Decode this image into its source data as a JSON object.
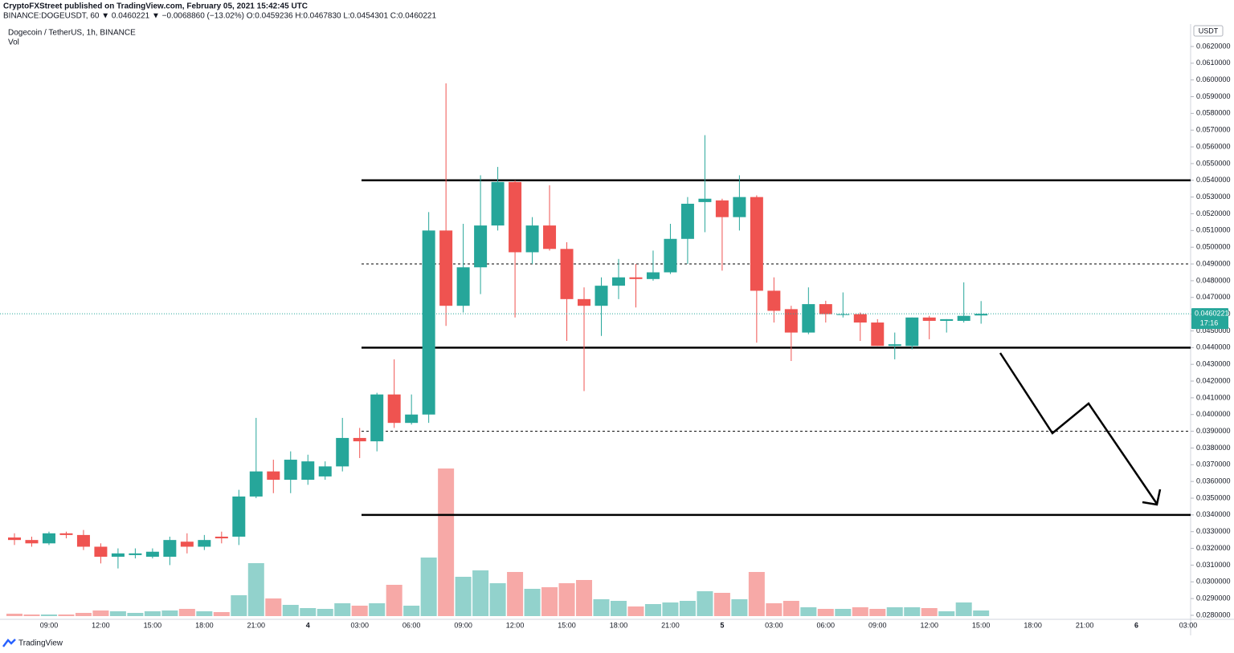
{
  "chart_data": {
    "type": "candlestick",
    "publisher": "CryptoFXStreet published on TradingView.com, February 05, 2021 15:42:45 UTC",
    "header": "BINANCE:DOGEUSDT, 60 ▼ 0.0460221 ▼ −0.0068860 (−13.02%) O:0.0459236 H:0.0467830 L:0.0454301 C:0.0460221",
    "title": "Dogecoin / TetherUS, 1h, BINANCE",
    "volume_label": "Vol",
    "currency": "USDT",
    "countdown": "17:16",
    "brand": "TradingView",
    "up_color": "#26a69a",
    "down_color": "#ef5350",
    "categories": [
      null,
      null,
      "09:00",
      null,
      null,
      "12:00",
      null,
      null,
      "15:00",
      null,
      null,
      "18:00",
      null,
      null,
      "21:00",
      null,
      null,
      "4",
      null,
      null,
      "03:00",
      null,
      null,
      "06:00",
      null,
      null,
      "09:00",
      null,
      null,
      "12:00",
      null,
      null,
      "15:00",
      null,
      null,
      "18:00",
      null,
      null,
      "21:00",
      null,
      null,
      "5",
      null,
      null,
      "03:00",
      null,
      null,
      "06:00",
      null,
      null,
      "09:00",
      null,
      null,
      "12:00",
      null,
      null,
      "15:00",
      null,
      null,
      "18:00",
      null,
      null,
      "21:00",
      null,
      null,
      "6",
      null,
      null,
      "03:00"
    ],
    "open": [
      0.03265,
      0.0325,
      0.0323,
      0.0329,
      0.0328,
      0.0321,
      0.0315,
      0.0316,
      0.0315,
      0.0315,
      0.0324,
      0.0321,
      0.0327,
      0.0327,
      0.0351,
      0.0366,
      0.0361,
      0.0361,
      0.0363,
      0.0369,
      0.0386,
      0.0384,
      0.0412,
      0.0395,
      0.04,
      0.051,
      0.0465,
      0.0488,
      0.0513,
      0.0539,
      0.0497,
      0.0513,
      0.0499,
      0.0469,
      0.0465,
      0.0477,
      0.0482,
      0.0481,
      0.0485,
      0.0505,
      0.0527,
      0.0528,
      0.0518,
      0.053,
      0.0474,
      0.0463,
      0.0449,
      0.0466,
      0.04595,
      0.046,
      0.0455,
      0.0441,
      0.0441,
      0.0458,
      0.0456,
      0.0456,
      0.0459236,
      null,
      null,
      null,
      null,
      null,
      null,
      null,
      null,
      null,
      null,
      null,
      null
    ],
    "high": [
      0.0329,
      0.0327,
      0.033,
      0.033,
      0.0331,
      0.0323,
      0.032,
      0.032,
      0.032,
      0.0327,
      0.0329,
      0.0328,
      0.033,
      0.0355,
      0.0398,
      0.0373,
      0.0378,
      0.0376,
      0.0372,
      0.0398,
      0.0392,
      0.0413,
      0.0433,
      0.0412,
      0.0521,
      0.0598,
      0.0514,
      0.0543,
      0.0548,
      0.054,
      0.0518,
      0.0537,
      0.0503,
      0.0476,
      0.0482,
      0.0493,
      0.049,
      0.0498,
      0.0514,
      0.053,
      0.0567,
      0.0529,
      0.0543,
      0.0531,
      0.0482,
      0.0465,
      0.0476,
      0.0468,
      0.0473,
      0.0461,
      0.0457,
      0.0449,
      0.0458,
      0.0459,
      0.0457,
      0.0479,
      0.046783,
      null,
      null,
      null,
      null,
      null,
      null,
      null,
      null,
      null,
      null,
      null,
      null
    ],
    "low": [
      0.0322,
      0.0321,
      0.0322,
      0.0326,
      0.0319,
      0.0311,
      0.0308,
      0.0314,
      0.0314,
      0.031,
      0.0317,
      0.0319,
      0.0323,
      0.0322,
      0.035,
      0.0353,
      0.0353,
      0.0358,
      0.0361,
      0.0366,
      0.0374,
      0.0378,
      0.0392,
      0.0394,
      0.0395,
      0.0453,
      0.0461,
      0.0472,
      0.051,
      0.0458,
      0.049,
      0.0498,
      0.0444,
      0.0414,
      0.0447,
      0.0469,
      0.0464,
      0.048,
      0.0484,
      0.049,
      0.0509,
      0.0486,
      0.051,
      0.0443,
      0.0455,
      0.0432,
      0.0448,
      0.0455,
      0.0458,
      0.0444,
      0.0441,
      0.0433,
      0.0439,
      0.0445,
      0.0449,
      0.0455,
      0.0454301,
      null,
      null,
      null,
      null,
      null,
      null,
      null,
      null,
      null,
      null,
      null,
      null
    ],
    "close": [
      0.0325,
      0.0323,
      0.0329,
      0.0328,
      0.0321,
      0.0315,
      0.0317,
      0.0317,
      0.0318,
      0.0325,
      0.0321,
      0.0325,
      0.0326,
      0.0351,
      0.0366,
      0.0361,
      0.0373,
      0.0372,
      0.0369,
      0.0386,
      0.0384,
      0.0412,
      0.0395,
      0.04,
      0.051,
      0.0465,
      0.0488,
      0.0513,
      0.0539,
      0.0497,
      0.0513,
      0.0499,
      0.0469,
      0.0465,
      0.0477,
      0.0482,
      0.0481,
      0.0485,
      0.0505,
      0.0526,
      0.0529,
      0.0518,
      0.053,
      0.0474,
      0.0462,
      0.0449,
      0.0466,
      0.046,
      0.046,
      0.0455,
      0.0441,
      0.0442,
      0.0458,
      0.0456,
      0.0457,
      0.0459,
      0.0460221,
      null,
      null,
      null,
      null,
      null,
      null,
      null,
      null,
      null,
      null,
      null,
      null
    ],
    "volume": [
      3,
      2,
      2,
      2,
      4,
      7,
      6,
      4,
      6,
      7,
      9,
      6,
      5,
      26,
      66,
      22,
      14,
      10,
      9,
      16,
      13,
      16,
      39,
      13,
      73,
      184,
      49,
      57,
      41,
      55,
      34,
      36,
      41,
      45,
      21,
      19,
      12,
      15,
      17,
      19,
      31,
      29,
      21,
      55,
      16,
      19,
      11,
      9,
      9,
      11,
      9,
      11,
      11,
      10,
      6,
      17,
      7,
      null,
      null,
      null,
      null,
      null,
      null,
      null,
      null,
      null,
      null,
      null,
      null
    ],
    "ylim": [
      0.02776,
      0.06334
    ],
    "yticks": [
      {
        "value": 0.028,
        "label": "0.0280000"
      },
      {
        "value": 0.029,
        "label": "0.0290000"
      },
      {
        "value": 0.03,
        "label": "0.0300000"
      },
      {
        "value": 0.031,
        "label": "0.0310000"
      },
      {
        "value": 0.032,
        "label": "0.0320000"
      },
      {
        "value": 0.033,
        "label": "0.0330000"
      },
      {
        "value": 0.034,
        "label": "0.0340000"
      },
      {
        "value": 0.035,
        "label": "0.0350000"
      },
      {
        "value": 0.036,
        "label": "0.0360000"
      },
      {
        "value": 0.037,
        "label": "0.0370000"
      },
      {
        "value": 0.038,
        "label": "0.0380000"
      },
      {
        "value": 0.039,
        "label": "0.0390000"
      },
      {
        "value": 0.04,
        "label": "0.0400000"
      },
      {
        "value": 0.041,
        "label": "0.0410000"
      },
      {
        "value": 0.042,
        "label": "0.0420000"
      },
      {
        "value": 0.043,
        "label": "0.0430000"
      },
      {
        "value": 0.044,
        "label": "0.0440000"
      },
      {
        "value": 0.045,
        "label": "0.0450000"
      },
      {
        "value": 0.046,
        "label": "0.0460000"
      },
      {
        "value": 0.047,
        "label": "0.0470000"
      },
      {
        "value": 0.048,
        "label": "0.0480000"
      },
      {
        "value": 0.049,
        "label": "0.0490000"
      },
      {
        "value": 0.05,
        "label": "0.0500000"
      },
      {
        "value": 0.051,
        "label": "0.0510000"
      },
      {
        "value": 0.052,
        "label": "0.0520000"
      },
      {
        "value": 0.053,
        "label": "0.0530000"
      },
      {
        "value": 0.054,
        "label": "0.0540000"
      },
      {
        "value": 0.055,
        "label": "0.0550000"
      },
      {
        "value": 0.056,
        "label": "0.0560000"
      },
      {
        "value": 0.057,
        "label": "0.0570000"
      },
      {
        "value": 0.058,
        "label": "0.0580000"
      },
      {
        "value": 0.059,
        "label": "0.0590000"
      },
      {
        "value": 0.06,
        "label": "0.0600000"
      },
      {
        "value": 0.061,
        "label": "0.0610000"
      },
      {
        "value": 0.062,
        "label": "0.0620000"
      }
    ],
    "levels": [
      {
        "value": 0.054,
        "dashed": false
      },
      {
        "value": 0.049,
        "dashed": true
      },
      {
        "value": 0.044,
        "dashed": false
      },
      {
        "value": 0.039,
        "dashed": true
      },
      {
        "value": 0.034,
        "dashed": false
      }
    ]
  }
}
